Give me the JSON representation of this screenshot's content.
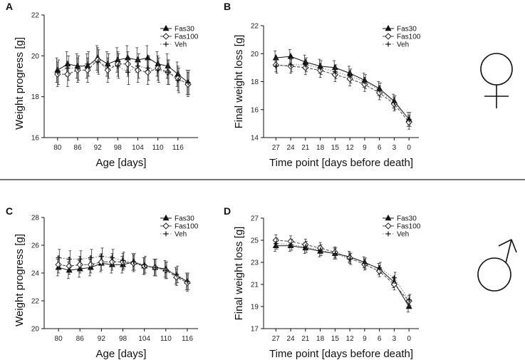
{
  "separator": true,
  "sex_symbols": {
    "female": "female-symbol",
    "male": "male-symbol"
  },
  "chart_data": [
    {
      "panel": "A",
      "type": "line",
      "xlabel": "Age [days]",
      "ylabel": "Weight progress [g]",
      "ylim": [
        16,
        22
      ],
      "yticks": [
        16,
        18,
        20,
        22
      ],
      "xlim": [
        76,
        122
      ],
      "xticks": [
        80,
        86,
        92,
        98,
        104,
        110,
        116
      ],
      "x": [
        80,
        83,
        86,
        89,
        92,
        95,
        98,
        101,
        104,
        107,
        110,
        113,
        116,
        119
      ],
      "legend": [
        "Fas30",
        "Fas100",
        "Veh"
      ],
      "series": [
        {
          "name": "Fas30",
          "values": [
            19.3,
            19.6,
            19.5,
            19.5,
            19.9,
            19.6,
            19.8,
            19.9,
            19.8,
            19.9,
            19.6,
            19.5,
            19.1,
            18.7
          ],
          "err": 0.6
        },
        {
          "name": "Fas100",
          "values": [
            19.1,
            19.1,
            19.3,
            19.3,
            19.8,
            19.3,
            19.6,
            19.6,
            19.3,
            19.2,
            19.4,
            19.2,
            18.9,
            18.6
          ],
          "err": 0.6
        },
        {
          "name": "Veh",
          "values": [
            19.2,
            19.4,
            19.4,
            19.6,
            19.7,
            19.5,
            19.5,
            19.2,
            19.5,
            19.4,
            19.3,
            19.2,
            18.8,
            18.7
          ],
          "err": 0.6
        }
      ]
    },
    {
      "panel": "B",
      "type": "line",
      "xlabel": "Time point [days before death]",
      "ylabel": "Final weight loss [g]",
      "ylim": [
        14,
        22
      ],
      "yticks": [
        14,
        16,
        18,
        20,
        22
      ],
      "xlim": [
        29.5,
        -2
      ],
      "xticks": [
        27,
        24,
        21,
        18,
        15,
        12,
        9,
        6,
        3,
        0
      ],
      "x": [
        27,
        24,
        21,
        18,
        15,
        12,
        9,
        6,
        3,
        0
      ],
      "legend": [
        "Fas30",
        "Fas100",
        "Veh"
      ],
      "series": [
        {
          "name": "Fas30",
          "values": [
            19.7,
            19.8,
            19.4,
            19.1,
            19.0,
            18.6,
            18.1,
            17.5,
            16.6,
            15.3
          ],
          "err": 0.5
        },
        {
          "name": "Fas100",
          "values": [
            19.2,
            19.1,
            19.0,
            18.8,
            18.5,
            18.2,
            17.8,
            17.2,
            16.4,
            15.1
          ],
          "err": 0.5
        },
        {
          "name": "Veh",
          "values": [
            19.1,
            19.2,
            19.2,
            19.0,
            18.7,
            18.4,
            18.0,
            17.4,
            16.5,
            15.3
          ],
          "err": 0.5
        }
      ]
    },
    {
      "panel": "C",
      "type": "line",
      "xlabel": "Age [days]",
      "ylabel": "Weight progress [g]",
      "ylim": [
        20,
        28
      ],
      "yticks": [
        20,
        22,
        24,
        26,
        28
      ],
      "xlim": [
        76,
        119
      ],
      "xticks": [
        80,
        86,
        92,
        98,
        104,
        110,
        116
      ],
      "x": [
        80,
        83,
        86,
        89,
        92,
        95,
        98,
        101,
        104,
        107,
        110,
        113,
        116
      ],
      "legend": [
        "Fas30",
        "Fas100",
        "Veh"
      ],
      "series": [
        {
          "name": "Fas30",
          "values": [
            24.4,
            24.2,
            24.3,
            24.4,
            24.7,
            24.6,
            24.6,
            24.8,
            24.5,
            24.4,
            24.3,
            23.8,
            23.4
          ],
          "err": 0.6
        },
        {
          "name": "Fas100",
          "values": [
            24.6,
            24.5,
            24.6,
            24.6,
            24.8,
            24.8,
            24.8,
            24.7,
            24.5,
            24.4,
            24.2,
            23.7,
            23.3
          ],
          "err": 0.6
        },
        {
          "name": "Veh",
          "values": [
            25.1,
            25.0,
            25.0,
            25.1,
            25.2,
            25.1,
            24.9,
            24.8,
            24.6,
            24.4,
            24.2,
            23.9,
            23.4
          ],
          "err": 0.6
        }
      ]
    },
    {
      "panel": "D",
      "type": "line",
      "xlabel": "Time point [days before death]",
      "ylabel": "Final weight loss [g]",
      "ylim": [
        17,
        27
      ],
      "yticks": [
        17,
        19,
        21,
        23,
        25,
        27
      ],
      "xlim": [
        29.5,
        -2
      ],
      "xticks": [
        27,
        24,
        21,
        18,
        15,
        12,
        9,
        6,
        3,
        0
      ],
      "x": [
        27,
        24,
        21,
        18,
        15,
        12,
        9,
        6,
        3,
        0
      ],
      "legend": [
        "Fas30",
        "Fas100",
        "Veh"
      ],
      "series": [
        {
          "name": "Fas30",
          "values": [
            24.5,
            24.5,
            24.3,
            24.0,
            23.8,
            23.5,
            23.0,
            22.4,
            21.2,
            19.0
          ],
          "err": 0.5
        },
        {
          "name": "Fas100",
          "values": [
            25.0,
            24.9,
            24.6,
            24.3,
            23.9,
            23.4,
            22.8,
            22.2,
            21.0,
            19.5
          ],
          "err": 0.5
        },
        {
          "name": "Veh",
          "values": [
            24.7,
            24.6,
            24.4,
            24.1,
            23.8,
            23.3,
            22.9,
            22.5,
            21.6,
            19.6
          ],
          "err": 0.5
        }
      ]
    }
  ]
}
